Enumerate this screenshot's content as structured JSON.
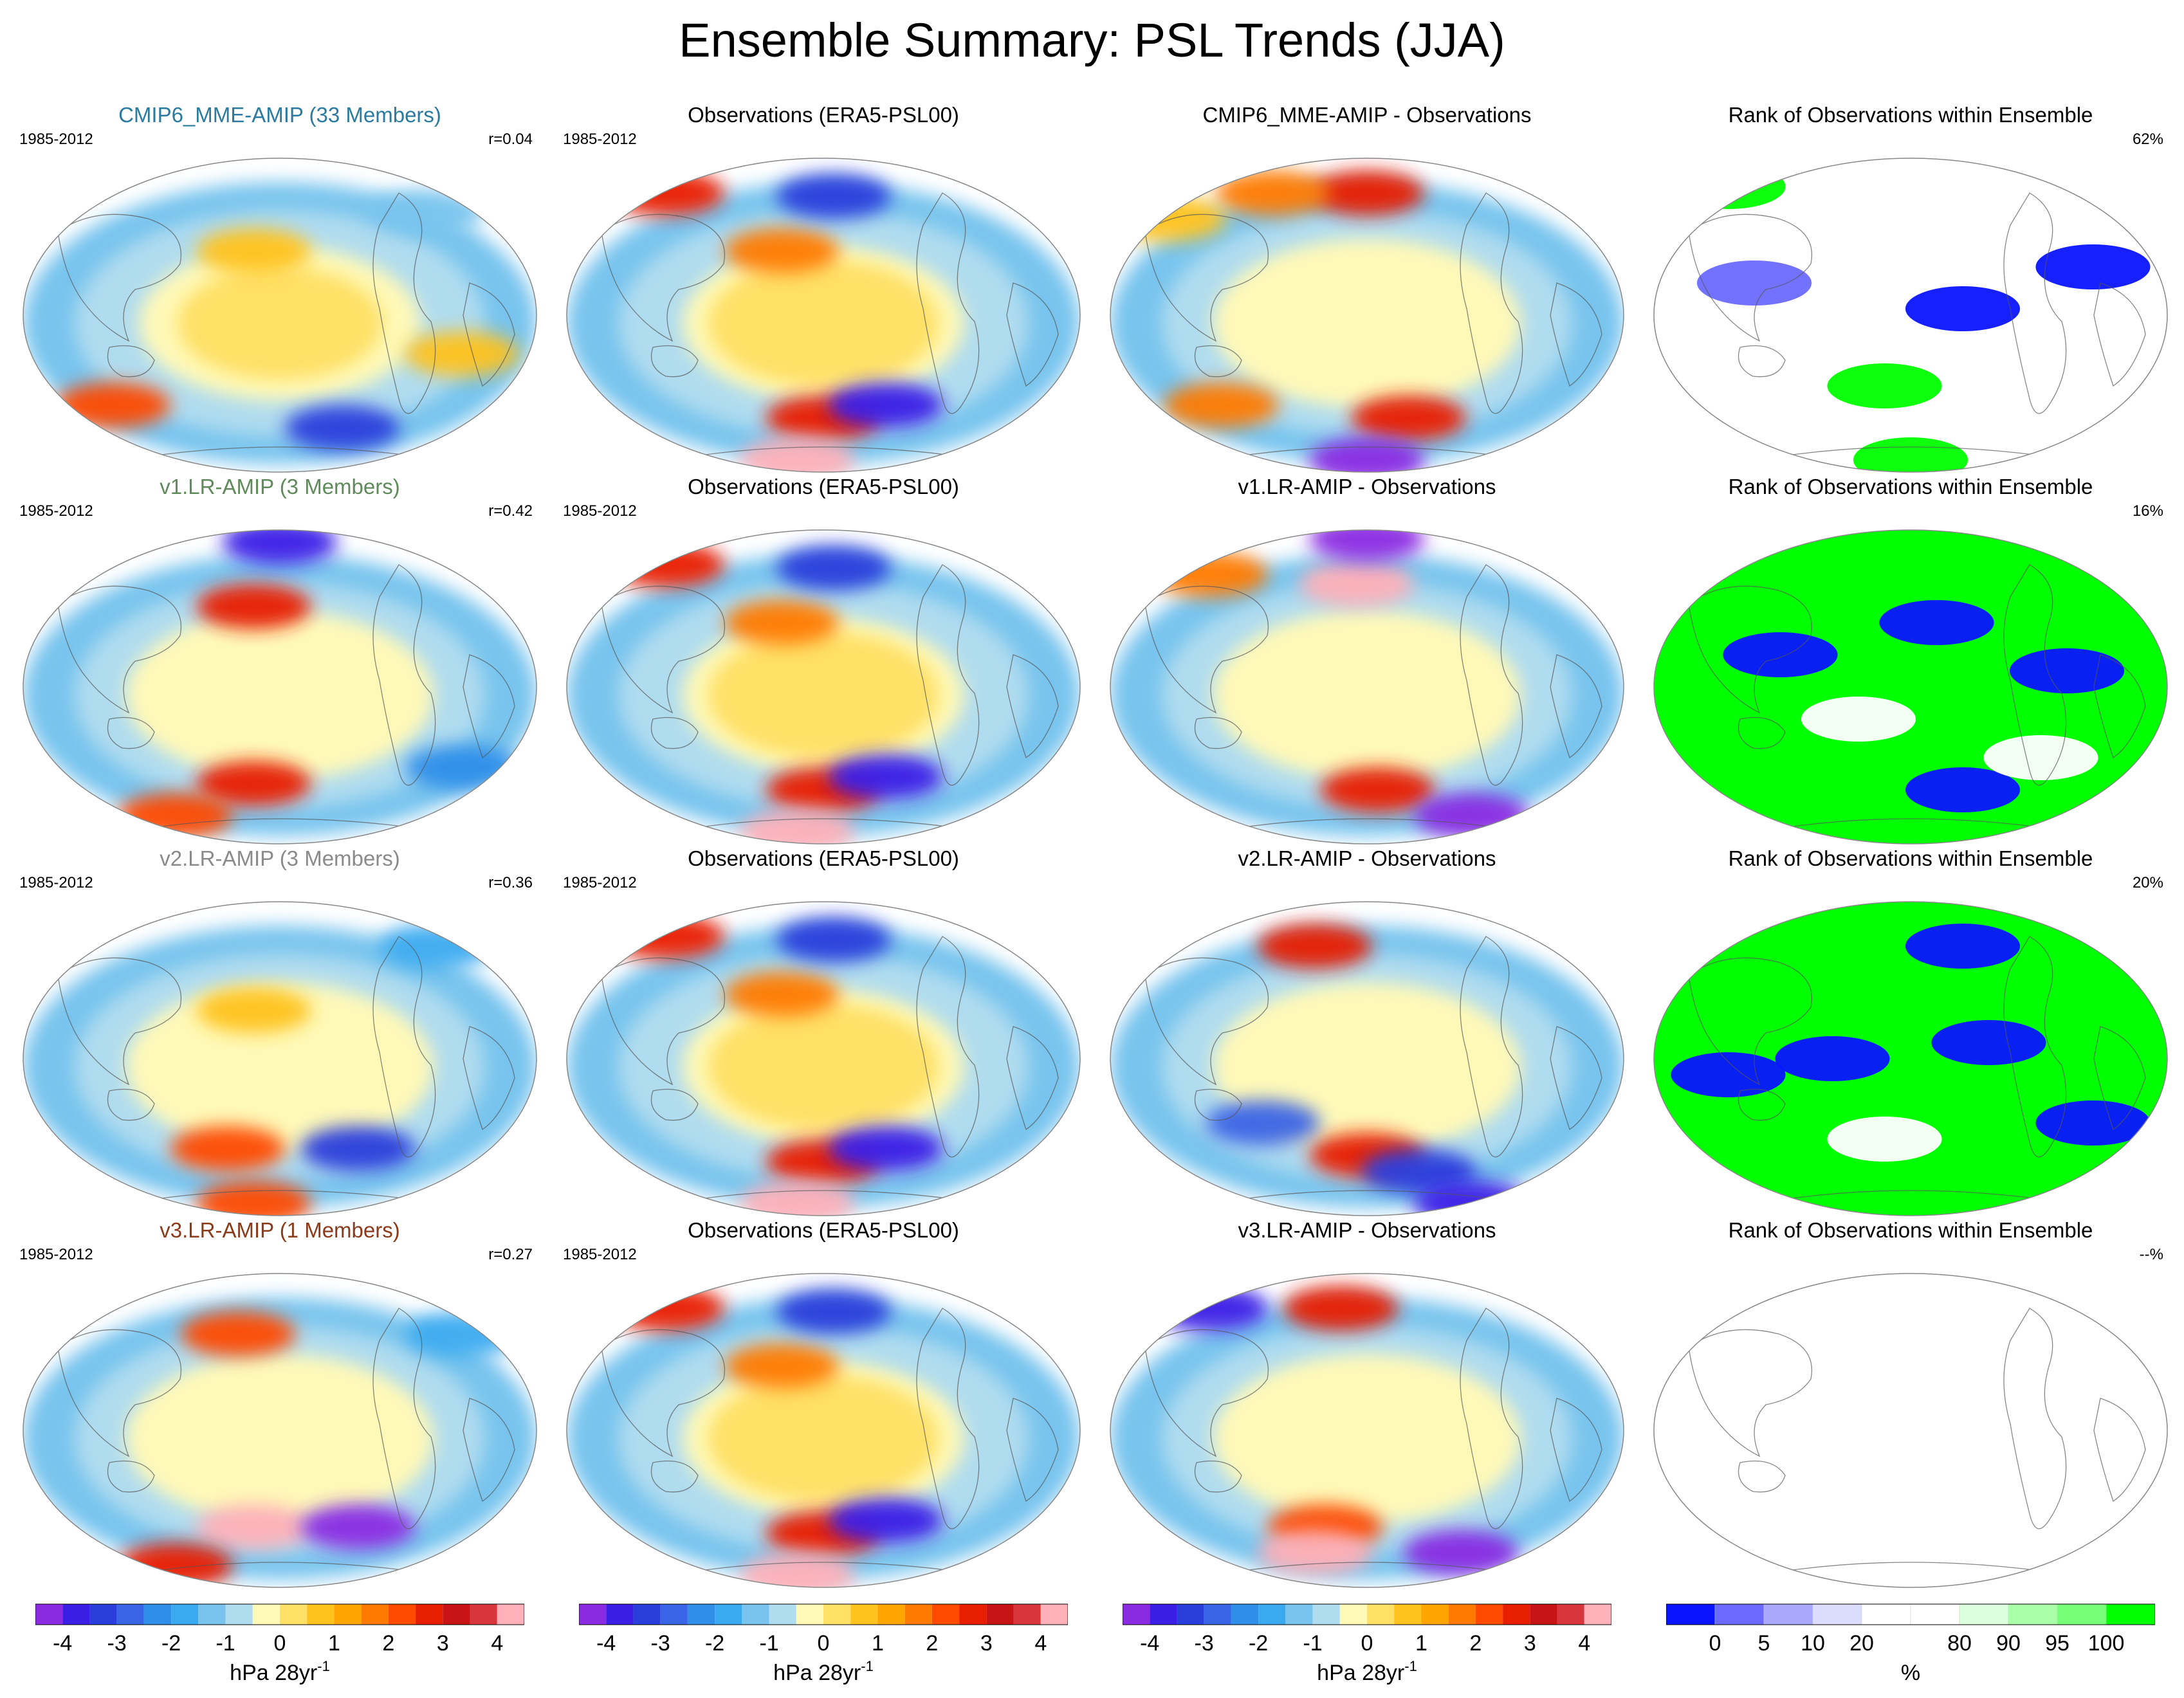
{
  "figure_title": "Ensemble Summary: PSL Trends (JJA)",
  "period": "1985-2012",
  "rows": [
    {
      "model": {
        "label": "CMIP6_MME-AMIP (33 Members)",
        "color": "#2b7ba0",
        "r": "r=0.04"
      },
      "obs": {
        "label": "Observations (ERA5-PSL00)"
      },
      "diff": {
        "label": "CMIP6_MME-AMIP - Observations"
      },
      "rank": {
        "label": "Rank of Observations within Ensemble",
        "pct": "62%"
      }
    },
    {
      "model": {
        "label": "v1.LR-AMIP (3 Members)",
        "color": "#5f8a5a",
        "r": "r=0.42"
      },
      "obs": {
        "label": "Observations (ERA5-PSL00)"
      },
      "diff": {
        "label": "v1.LR-AMIP - Observations"
      },
      "rank": {
        "label": "Rank of Observations within Ensemble",
        "pct": "16%"
      }
    },
    {
      "model": {
        "label": "v2.LR-AMIP (3 Members)",
        "color": "#8a8a8a",
        "r": "r=0.36"
      },
      "obs": {
        "label": "Observations (ERA5-PSL00)"
      },
      "diff": {
        "label": "v2.LR-AMIP - Observations"
      },
      "rank": {
        "label": "Rank of Observations within Ensemble",
        "pct": "20%"
      }
    },
    {
      "model": {
        "label": "v3.LR-AMIP (1 Members)",
        "color": "#8b3a1a",
        "r": "r=0.27"
      },
      "obs": {
        "label": "Observations (ERA5-PSL00)"
      },
      "diff": {
        "label": "v3.LR-AMIP - Observations"
      },
      "rank": {
        "label": "Rank of Observations within Ensemble",
        "pct": "--%"
      }
    }
  ],
  "trend_colorbar": {
    "colors": [
      "#8a2be2",
      "#3a1ee6",
      "#2a3edb",
      "#3a64e6",
      "#2f8ee8",
      "#3aaaf0",
      "#78c4ee",
      "#b0dcef",
      "#fff9b8",
      "#ffe066",
      "#ffc21e",
      "#ffa500",
      "#ff7a00",
      "#ff4a00",
      "#e81e00",
      "#c81414",
      "#d8363c",
      "#ffb0b8"
    ],
    "tick_labels": [
      "-4",
      "-3",
      "-2",
      "-1",
      "0",
      "1",
      "2",
      "3",
      "4"
    ],
    "units": "hPa 28yr",
    "units_sup": "-1"
  },
  "rank_colorbar": {
    "colors": [
      "#0a14ff",
      "#6a6aff",
      "#a8a8ff",
      "#dcdcff",
      "#ffffff",
      "#ffffff",
      "#dcffdc",
      "#a8ffa8",
      "#78ff78",
      "#00ff00"
    ],
    "tick_labels": [
      "0",
      "5",
      "10",
      "20",
      "80",
      "90",
      "95",
      "100"
    ],
    "units": "%"
  },
  "map_fields": [
    [
      {
        "bands": [
          [
            "#78c4ee",
            1.0
          ],
          [
            "#b0dcef",
            0.8
          ],
          [
            "#fff9b8",
            0.55
          ],
          [
            "#ffe066",
            0.4
          ]
        ],
        "blobs": [
          [
            0.45,
            0.3,
            "#ffc21e"
          ],
          [
            0.18,
            0.78,
            "#ff4a00"
          ],
          [
            0.85,
            0.62,
            "#ffc21e"
          ],
          [
            0.62,
            0.85,
            "#2a3edb"
          ],
          [
            0.78,
            0.18,
            "#78c4ee"
          ]
        ]
      },
      {
        "bands": [
          [
            "#78c4ee",
            1.0
          ],
          [
            "#b0dcef",
            0.8
          ],
          [
            "#fff9b8",
            0.55
          ],
          [
            "#ffe066",
            0.45
          ]
        ],
        "blobs": [
          [
            0.42,
            0.3,
            "#ff7a00"
          ],
          [
            0.2,
            0.12,
            "#e81e00"
          ],
          [
            0.52,
            0.13,
            "#2a3edb"
          ],
          [
            0.5,
            0.82,
            "#e81e00"
          ],
          [
            0.62,
            0.78,
            "#3a1ee6"
          ],
          [
            0.45,
            0.95,
            "#ffb0b8"
          ]
        ]
      },
      {
        "bands": [
          [
            "#78c4ee",
            1.0
          ],
          [
            "#b0dcef",
            0.8
          ],
          [
            "#fff9b8",
            0.6
          ]
        ],
        "blobs": [
          [
            0.5,
            0.12,
            "#e81e00"
          ],
          [
            0.32,
            0.12,
            "#ff7a00"
          ],
          [
            0.12,
            0.2,
            "#ffc21e"
          ],
          [
            0.58,
            0.82,
            "#e81e00"
          ],
          [
            0.5,
            0.95,
            "#8a2be2"
          ],
          [
            0.22,
            0.78,
            "#ff7a00"
          ]
        ]
      },
      {
        "rank": true,
        "fill": "#ffffff",
        "blobs": [
          [
            0.2,
            0.4,
            "#6a6aff"
          ],
          [
            0.6,
            0.48,
            "#0a14ff"
          ],
          [
            0.85,
            0.35,
            "#0a14ff"
          ],
          [
            0.5,
            0.95,
            "#00ff00"
          ],
          [
            0.15,
            0.1,
            "#00ff00"
          ],
          [
            0.45,
            0.72,
            "#00ff00"
          ]
        ]
      }
    ],
    [
      {
        "bands": [
          [
            "#78c4ee",
            1.0
          ],
          [
            "#b0dcef",
            0.8
          ],
          [
            "#fff9b8",
            0.6
          ]
        ],
        "blobs": [
          [
            0.45,
            0.25,
            "#e81e00"
          ],
          [
            0.5,
            0.05,
            "#3a1ee6"
          ],
          [
            0.45,
            0.8,
            "#e81e00"
          ],
          [
            0.3,
            0.9,
            "#ff4a00"
          ],
          [
            0.85,
            0.75,
            "#2f8ee8"
          ]
        ]
      },
      {
        "bands": [
          [
            "#78c4ee",
            1.0
          ],
          [
            "#b0dcef",
            0.8
          ],
          [
            "#fff9b8",
            0.55
          ],
          [
            "#ffe066",
            0.45
          ]
        ],
        "blobs": [
          [
            0.42,
            0.3,
            "#ff7a00"
          ],
          [
            0.2,
            0.12,
            "#e81e00"
          ],
          [
            0.52,
            0.13,
            "#2a3edb"
          ],
          [
            0.5,
            0.82,
            "#e81e00"
          ],
          [
            0.62,
            0.78,
            "#3a1ee6"
          ],
          [
            0.45,
            0.95,
            "#ffb0b8"
          ]
        ]
      },
      {
        "bands": [
          [
            "#78c4ee",
            1.0
          ],
          [
            "#b0dcef",
            0.8
          ],
          [
            "#fff9b8",
            0.6
          ]
        ],
        "blobs": [
          [
            0.48,
            0.18,
            "#ffb0b8"
          ],
          [
            0.5,
            0.04,
            "#8a2be2"
          ],
          [
            0.52,
            0.82,
            "#e81e00"
          ],
          [
            0.7,
            0.9,
            "#8a2be2"
          ],
          [
            0.2,
            0.15,
            "#ff7a00"
          ]
        ]
      },
      {
        "rank": true,
        "fill": "#00ff00",
        "blobs": [
          [
            0.25,
            0.4,
            "#0a14ff"
          ],
          [
            0.55,
            0.3,
            "#0a14ff"
          ],
          [
            0.8,
            0.45,
            "#0a14ff"
          ],
          [
            0.6,
            0.82,
            "#0a14ff"
          ],
          [
            0.4,
            0.6,
            "#ffffff"
          ],
          [
            0.75,
            0.72,
            "#ffffff"
          ]
        ]
      }
    ],
    [
      {
        "bands": [
          [
            "#78c4ee",
            1.0
          ],
          [
            "#b0dcef",
            0.8
          ],
          [
            "#fff9b8",
            0.6
          ]
        ],
        "blobs": [
          [
            0.45,
            0.35,
            "#ffc21e"
          ],
          [
            0.4,
            0.78,
            "#ff4a00"
          ],
          [
            0.65,
            0.78,
            "#2a3edb"
          ],
          [
            0.45,
            0.95,
            "#ff4a00"
          ],
          [
            0.8,
            0.15,
            "#3aaaf0"
          ]
        ]
      },
      {
        "bands": [
          [
            "#78c4ee",
            1.0
          ],
          [
            "#b0dcef",
            0.8
          ],
          [
            "#fff9b8",
            0.55
          ],
          [
            "#ffe066",
            0.45
          ]
        ],
        "blobs": [
          [
            0.42,
            0.3,
            "#ff7a00"
          ],
          [
            0.2,
            0.12,
            "#e81e00"
          ],
          [
            0.52,
            0.13,
            "#2a3edb"
          ],
          [
            0.5,
            0.82,
            "#e81e00"
          ],
          [
            0.62,
            0.78,
            "#3a1ee6"
          ],
          [
            0.45,
            0.95,
            "#ffb0b8"
          ]
        ]
      },
      {
        "bands": [
          [
            "#78c4ee",
            1.0
          ],
          [
            "#b0dcef",
            0.8
          ],
          [
            "#fff9b8",
            0.6
          ]
        ],
        "blobs": [
          [
            0.4,
            0.15,
            "#e81e00"
          ],
          [
            0.5,
            0.8,
            "#e81e00"
          ],
          [
            0.6,
            0.85,
            "#2a3edb"
          ],
          [
            0.7,
            0.95,
            "#3a1ee6"
          ],
          [
            0.3,
            0.7,
            "#3a64e6"
          ]
        ]
      },
      {
        "rank": true,
        "fill": "#00ff00",
        "blobs": [
          [
            0.35,
            0.5,
            "#0a14ff"
          ],
          [
            0.65,
            0.45,
            "#0a14ff"
          ],
          [
            0.6,
            0.15,
            "#0a14ff"
          ],
          [
            0.85,
            0.7,
            "#0a14ff"
          ],
          [
            0.15,
            0.55,
            "#0a14ff"
          ],
          [
            0.45,
            0.75,
            "#ffffff"
          ]
        ]
      }
    ],
    [
      {
        "bands": [
          [
            "#78c4ee",
            1.0
          ],
          [
            "#b0dcef",
            0.8
          ],
          [
            "#fff9b8",
            0.6
          ]
        ],
        "blobs": [
          [
            0.42,
            0.2,
            "#ff4a00"
          ],
          [
            0.45,
            0.8,
            "#ffb0b8"
          ],
          [
            0.65,
            0.8,
            "#8a2be2"
          ],
          [
            0.3,
            0.92,
            "#e81e00"
          ],
          [
            0.85,
            0.2,
            "#3aaaf0"
          ]
        ]
      },
      {
        "bands": [
          [
            "#78c4ee",
            1.0
          ],
          [
            "#b0dcef",
            0.8
          ],
          [
            "#fff9b8",
            0.55
          ],
          [
            "#ffe066",
            0.45
          ]
        ],
        "blobs": [
          [
            0.42,
            0.3,
            "#ff7a00"
          ],
          [
            0.2,
            0.12,
            "#e81e00"
          ],
          [
            0.52,
            0.13,
            "#2a3edb"
          ],
          [
            0.5,
            0.82,
            "#e81e00"
          ],
          [
            0.62,
            0.78,
            "#3a1ee6"
          ],
          [
            0.45,
            0.95,
            "#ffb0b8"
          ]
        ]
      },
      {
        "bands": [
          [
            "#78c4ee",
            1.0
          ],
          [
            "#b0dcef",
            0.8
          ],
          [
            "#fff9b8",
            0.6
          ]
        ],
        "blobs": [
          [
            0.45,
            0.12,
            "#e81e00"
          ],
          [
            0.2,
            0.12,
            "#3a1ee6"
          ],
          [
            0.42,
            0.8,
            "#ff4a00"
          ],
          [
            0.68,
            0.88,
            "#8a2be2"
          ],
          [
            0.4,
            0.88,
            "#ffb0b8"
          ]
        ]
      },
      {
        "rank": true,
        "fill": "#ffffff",
        "blobs": []
      }
    ]
  ]
}
